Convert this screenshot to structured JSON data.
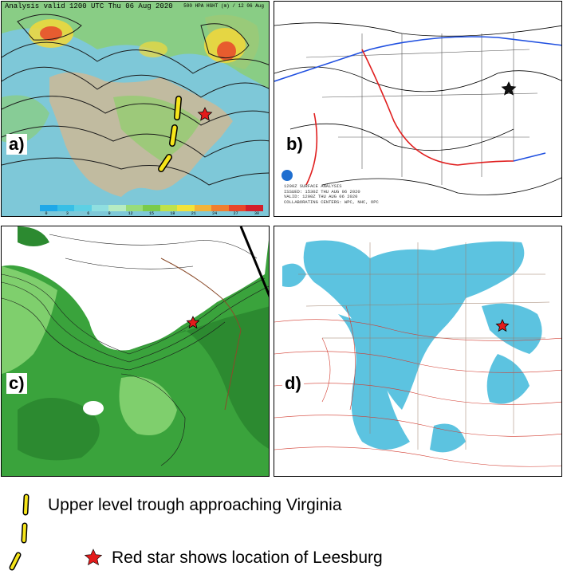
{
  "panel_a": {
    "label": "a)",
    "header": "Analysis valid 1200 UTC Thu 06 Aug 2020",
    "header_right": "500 HPA HGHT (m) / 12 06 Aug",
    "colorbar": {
      "colors": [
        "#1fa8e8",
        "#38bfe6",
        "#5dd0e4",
        "#8fdfe0",
        "#b6ecc2",
        "#98dc7a",
        "#7acb4c",
        "#bfe24a",
        "#f2e33a",
        "#f2b43a",
        "#ef7f2f",
        "#e8462a",
        "#d31e2a"
      ],
      "ticks": [
        "0",
        "3",
        "6",
        "9",
        "12",
        "15",
        "18",
        "21",
        "24",
        "27",
        "30"
      ]
    }
  },
  "panel_b": {
    "label": "b)",
    "credit": "1200Z SURFACE ANALYSIS\nISSUED: 1530Z THU AUG 06 2020\nVALID: 1200Z THU AUG 06 2020\nCOLLABORATING CENTERS: WPC, NHC, OPC"
  },
  "panel_c": {
    "label": "c)"
  },
  "panel_d": {
    "label": "d)"
  },
  "legend": {
    "trough_text": "Upper level trough approaching Virginia",
    "star_text": "Red star shows location of Leesburg",
    "trough_color": "#f6e51b",
    "star_color": "#e31b1b"
  }
}
